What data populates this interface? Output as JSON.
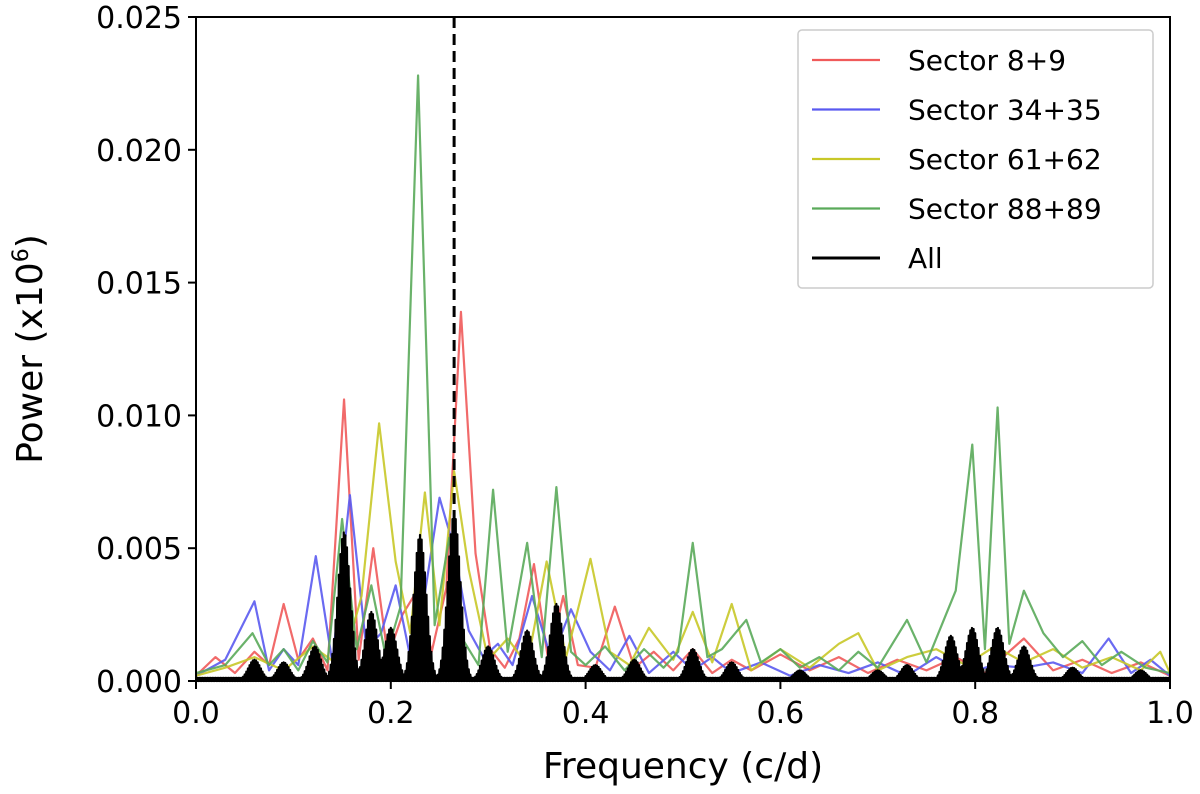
{
  "chart_data": {
    "type": "line",
    "title": "",
    "xlabel": "Frequency (c/d)",
    "ylabel": "Power (x10",
    "ylabel_exp": "6",
    "ylabel_close": ")",
    "xlim": [
      0.0,
      1.0
    ],
    "ylim": [
      0.0,
      0.025
    ],
    "xticks": [
      0.0,
      0.2,
      0.4,
      0.6,
      0.8,
      1.0
    ],
    "xtick_labels": [
      "0.0",
      "0.2",
      "0.4",
      "0.6",
      "0.8",
      "1.0"
    ],
    "yticks": [
      0.0,
      0.005,
      0.01,
      0.015,
      0.02,
      0.025
    ],
    "ytick_labels": [
      "0.000",
      "0.005",
      "0.010",
      "0.015",
      "0.020",
      "0.025"
    ],
    "grid": false,
    "legend_position": "top-right",
    "vline": {
      "x": 0.265,
      "style": "dashed",
      "color": "#000000"
    },
    "series": [
      {
        "name": "Sector 8+9",
        "color": "#f05a5a",
        "x": [
          0.0,
          0.02,
          0.04,
          0.06,
          0.075,
          0.09,
          0.105,
          0.12,
          0.135,
          0.152,
          0.167,
          0.182,
          0.197,
          0.212,
          0.227,
          0.242,
          0.257,
          0.272,
          0.287,
          0.302,
          0.317,
          0.332,
          0.347,
          0.362,
          0.377,
          0.392,
          0.41,
          0.43,
          0.45,
          0.47,
          0.49,
          0.51,
          0.53,
          0.55,
          0.57,
          0.6,
          0.63,
          0.66,
          0.69,
          0.72,
          0.75,
          0.78,
          0.81,
          0.85,
          0.88,
          0.91,
          0.94,
          0.97,
          1.0
        ],
        "y": [
          0.0002,
          0.0009,
          0.0003,
          0.0011,
          0.0006,
          0.0029,
          0.0008,
          0.0016,
          0.0004,
          0.0106,
          0.0008,
          0.005,
          0.0009,
          0.0025,
          0.0034,
          0.0011,
          0.0035,
          0.0139,
          0.0048,
          0.0012,
          0.0005,
          0.0016,
          0.0044,
          0.0007,
          0.0032,
          0.0006,
          0.0005,
          0.0028,
          0.0005,
          0.0011,
          0.0004,
          0.0012,
          0.0003,
          0.0008,
          0.0004,
          0.001,
          0.0004,
          0.0009,
          0.0003,
          0.0008,
          0.0004,
          0.0009,
          0.0003,
          0.0016,
          0.0004,
          0.0008,
          0.0003,
          0.0007,
          0.0002
        ]
      },
      {
        "name": "Sector 34+35",
        "color": "#5a5af0",
        "x": [
          0.0,
          0.03,
          0.06,
          0.075,
          0.09,
          0.105,
          0.123,
          0.14,
          0.158,
          0.175,
          0.19,
          0.205,
          0.22,
          0.235,
          0.25,
          0.265,
          0.28,
          0.295,
          0.31,
          0.325,
          0.345,
          0.365,
          0.385,
          0.405,
          0.425,
          0.445,
          0.465,
          0.49,
          0.51,
          0.53,
          0.55,
          0.58,
          0.61,
          0.64,
          0.67,
          0.7,
          0.73,
          0.76,
          0.79,
          0.82,
          0.85,
          0.88,
          0.91,
          0.937,
          0.96,
          0.98,
          1.0
        ],
        "y": [
          0.0002,
          0.0008,
          0.003,
          0.0004,
          0.0012,
          0.0006,
          0.0047,
          0.0007,
          0.007,
          0.0012,
          0.0018,
          0.0036,
          0.0009,
          0.0033,
          0.0069,
          0.005,
          0.0019,
          0.0009,
          0.0014,
          0.0006,
          0.0032,
          0.0008,
          0.0027,
          0.0011,
          0.0004,
          0.0017,
          0.0003,
          0.0011,
          0.0004,
          0.0009,
          0.0003,
          0.0007,
          0.0002,
          0.0006,
          0.0003,
          0.0007,
          0.0002,
          0.0009,
          0.0003,
          0.0006,
          0.0005,
          0.0007,
          0.0003,
          0.0016,
          0.0003,
          0.0008,
          0.0002
        ]
      },
      {
        "name": "Sector 61+62",
        "color": "#c8c828",
        "x": [
          0.0,
          0.03,
          0.06,
          0.09,
          0.12,
          0.15,
          0.17,
          0.188,
          0.205,
          0.22,
          0.235,
          0.25,
          0.265,
          0.28,
          0.3,
          0.32,
          0.34,
          0.36,
          0.38,
          0.405,
          0.425,
          0.445,
          0.465,
          0.49,
          0.51,
          0.53,
          0.55,
          0.57,
          0.6,
          0.63,
          0.66,
          0.68,
          0.7,
          0.73,
          0.76,
          0.79,
          0.82,
          0.85,
          0.88,
          0.91,
          0.94,
          0.97,
          0.99,
          1.0
        ],
        "y": [
          0.0002,
          0.0005,
          0.0009,
          0.0004,
          0.0013,
          0.0005,
          0.0032,
          0.0097,
          0.0045,
          0.0018,
          0.0071,
          0.0021,
          0.0079,
          0.0042,
          0.0008,
          0.0016,
          0.0006,
          0.0045,
          0.0009,
          0.0046,
          0.0011,
          0.0006,
          0.002,
          0.0008,
          0.0026,
          0.0007,
          0.0029,
          0.0004,
          0.0012,
          0.0005,
          0.0014,
          0.0018,
          0.0004,
          0.0009,
          0.0012,
          0.0006,
          0.0013,
          0.0007,
          0.0012,
          0.0005,
          0.0009,
          0.0004,
          0.0011,
          0.0003
        ]
      },
      {
        "name": "Sector 88+89",
        "color": "#5aaa5a",
        "x": [
          0.0,
          0.03,
          0.058,
          0.075,
          0.09,
          0.105,
          0.12,
          0.135,
          0.15,
          0.165,
          0.18,
          0.195,
          0.21,
          0.228,
          0.245,
          0.26,
          0.275,
          0.29,
          0.305,
          0.32,
          0.34,
          0.355,
          0.37,
          0.385,
          0.4,
          0.42,
          0.44,
          0.46,
          0.48,
          0.495,
          0.51,
          0.525,
          0.54,
          0.565,
          0.58,
          0.6,
          0.62,
          0.64,
          0.66,
          0.68,
          0.7,
          0.73,
          0.75,
          0.77,
          0.78,
          0.797,
          0.81,
          0.823,
          0.835,
          0.85,
          0.87,
          0.89,
          0.91,
          0.93,
          0.95,
          0.975,
          1.0
        ],
        "y": [
          0.0003,
          0.0006,
          0.0018,
          0.0006,
          0.0012,
          0.0004,
          0.0015,
          0.0007,
          0.0061,
          0.0012,
          0.0036,
          0.0009,
          0.0028,
          0.0228,
          0.0021,
          0.0054,
          0.0015,
          0.0006,
          0.0072,
          0.0011,
          0.0052,
          0.0009,
          0.0073,
          0.0011,
          0.0006,
          0.0013,
          0.0004,
          0.0012,
          0.0005,
          0.0011,
          0.0052,
          0.0009,
          0.0012,
          0.0023,
          0.0007,
          0.0012,
          0.0005,
          0.0009,
          0.0004,
          0.0011,
          0.0005,
          0.0023,
          0.0007,
          0.0025,
          0.0034,
          0.0089,
          0.0012,
          0.0103,
          0.0014,
          0.0034,
          0.0018,
          0.0009,
          0.0015,
          0.0006,
          0.0011,
          0.0005,
          0.0003
        ]
      },
      {
        "name": "All",
        "color": "#000000",
        "envelope_peaks": [
          {
            "x": 0.06,
            "y": 0.0008
          },
          {
            "x": 0.09,
            "y": 0.0007
          },
          {
            "x": 0.122,
            "y": 0.0013
          },
          {
            "x": 0.152,
            "y": 0.0056
          },
          {
            "x": 0.18,
            "y": 0.0026
          },
          {
            "x": 0.2,
            "y": 0.002
          },
          {
            "x": 0.23,
            "y": 0.0055
          },
          {
            "x": 0.265,
            "y": 0.0063
          },
          {
            "x": 0.3,
            "y": 0.0013
          },
          {
            "x": 0.34,
            "y": 0.0019
          },
          {
            "x": 0.37,
            "y": 0.0029
          },
          {
            "x": 0.41,
            "y": 0.0006
          },
          {
            "x": 0.45,
            "y": 0.0008
          },
          {
            "x": 0.51,
            "y": 0.0012
          },
          {
            "x": 0.55,
            "y": 0.0007
          },
          {
            "x": 0.62,
            "y": 0.0004
          },
          {
            "x": 0.7,
            "y": 0.0004
          },
          {
            "x": 0.73,
            "y": 0.0006
          },
          {
            "x": 0.775,
            "y": 0.0017
          },
          {
            "x": 0.797,
            "y": 0.002
          },
          {
            "x": 0.823,
            "y": 0.002
          },
          {
            "x": 0.85,
            "y": 0.0013
          },
          {
            "x": 0.9,
            "y": 0.0005
          },
          {
            "x": 0.97,
            "y": 0.0004
          }
        ]
      }
    ]
  }
}
